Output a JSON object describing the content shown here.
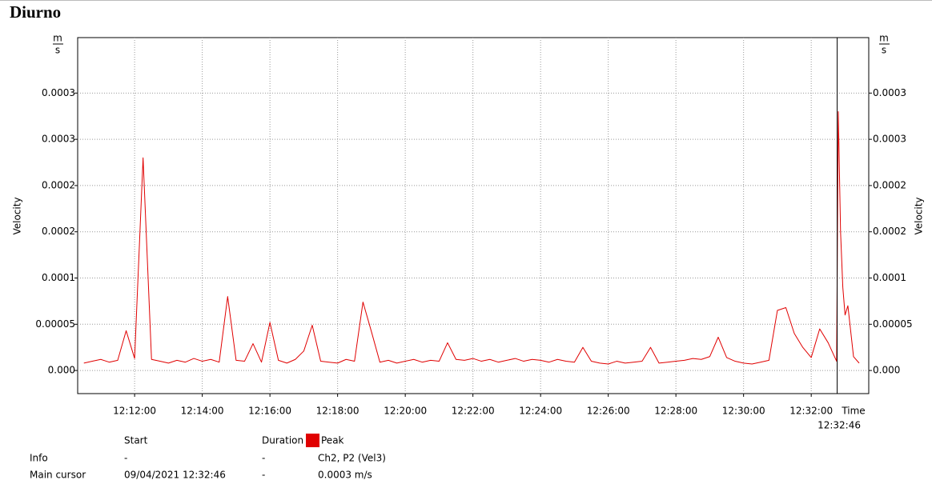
{
  "chart_data": {
    "type": "line",
    "title": "Diurno",
    "y_label": "Velocity",
    "x_label": "Time",
    "y_unit": {
      "num": "m",
      "den": "s"
    },
    "x": [
      "12:10:30",
      "12:10:45",
      "12:11:00",
      "12:11:15",
      "12:11:30",
      "12:11:45",
      "12:12:00",
      "12:12:15",
      "12:12:30",
      "12:12:45",
      "12:13:00",
      "12:13:15",
      "12:13:30",
      "12:13:45",
      "12:14:00",
      "12:14:15",
      "12:14:30",
      "12:14:45",
      "12:15:00",
      "12:15:15",
      "12:15:30",
      "12:15:45",
      "12:16:00",
      "12:16:15",
      "12:16:30",
      "12:16:45",
      "12:17:00",
      "12:17:15",
      "12:17:30",
      "12:17:45",
      "12:18:00",
      "12:18:15",
      "12:18:30",
      "12:18:45",
      "12:19:00",
      "12:19:15",
      "12:19:30",
      "12:19:45",
      "12:20:00",
      "12:20:15",
      "12:20:30",
      "12:20:45",
      "12:21:00",
      "12:21:15",
      "12:21:30",
      "12:21:45",
      "12:22:00",
      "12:22:15",
      "12:22:30",
      "12:22:45",
      "12:23:00",
      "12:23:15",
      "12:23:30",
      "12:23:45",
      "12:24:00",
      "12:24:15",
      "12:24:30",
      "12:24:45",
      "12:25:00",
      "12:25:15",
      "12:25:30",
      "12:25:45",
      "12:26:00",
      "12:26:15",
      "12:26:30",
      "12:26:45",
      "12:27:00",
      "12:27:15",
      "12:27:30",
      "12:27:45",
      "12:28:00",
      "12:28:15",
      "12:28:30",
      "12:28:45",
      "12:29:00",
      "12:29:15",
      "12:29:30",
      "12:29:45",
      "12:30:00",
      "12:30:15",
      "12:30:30",
      "12:30:45",
      "12:31:00",
      "12:31:15",
      "12:31:30",
      "12:31:45",
      "12:32:00",
      "12:32:15",
      "12:32:30",
      "12:32:45",
      "12:32:48",
      "12:32:52",
      "12:32:56",
      "12:33:00",
      "12:33:05",
      "12:33:15",
      "12:33:25"
    ],
    "series": [
      {
        "name": "Peak",
        "color": "#e00000",
        "values": [
          8e-06,
          1e-05,
          1.2e-05,
          9e-06,
          1.1e-05,
          4.3e-05,
          1.3e-05,
          0.00023,
          1.2e-05,
          1e-05,
          8e-06,
          1.1e-05,
          9e-06,
          1.3e-05,
          1e-05,
          1.2e-05,
          9e-06,
          8e-05,
          1.1e-05,
          1e-05,
          2.9e-05,
          9e-06,
          5.2e-05,
          1.1e-05,
          8e-06,
          1.2e-05,
          2.1e-05,
          4.9e-05,
          1e-05,
          9e-06,
          8e-06,
          1.2e-05,
          1e-05,
          7.4e-05,
          4.2e-05,
          9e-06,
          1.1e-05,
          8e-06,
          1e-05,
          1.2e-05,
          9e-06,
          1.1e-05,
          1e-05,
          3e-05,
          1.2e-05,
          1.1e-05,
          1.3e-05,
          1e-05,
          1.2e-05,
          9e-06,
          1.1e-05,
          1.3e-05,
          1e-05,
          1.2e-05,
          1.1e-05,
          9e-06,
          1.2e-05,
          1e-05,
          9e-06,
          2.5e-05,
          1e-05,
          8e-06,
          7e-06,
          1e-05,
          8e-06,
          9e-06,
          1e-05,
          2.5e-05,
          8e-06,
          9e-06,
          1e-05,
          1.1e-05,
          1.3e-05,
          1.2e-05,
          1.5e-05,
          3.6e-05,
          1.4e-05,
          1e-05,
          8e-06,
          7e-06,
          9e-06,
          1.1e-05,
          6.5e-05,
          6.8e-05,
          4e-05,
          2.5e-05,
          1.4e-05,
          4.5e-05,
          3e-05,
          1e-05,
          0.00028,
          0.00015,
          9e-05,
          6e-05,
          7e-05,
          1.5e-05,
          8e-06
        ]
      }
    ],
    "xlim": [
      "12:10:19",
      "12:33:42"
    ],
    "xticks": [
      "12:12:00",
      "12:14:00",
      "12:16:00",
      "12:18:00",
      "12:20:00",
      "12:22:00",
      "12:24:00",
      "12:26:00",
      "12:28:00",
      "12:30:00",
      "12:32:00"
    ],
    "ylim": [
      -2.5e-05,
      0.00036
    ],
    "yticks": [
      {
        "value": 0,
        "label": "0.000"
      },
      5e-05,
      0.0001,
      {
        "value": 0.00015,
        "label": "0.0002"
      },
      0.0002,
      {
        "value": 0.00025,
        "label": "0.0003"
      },
      0.0003
    ],
    "grid": true,
    "cursor": "12:32:46"
  },
  "info": {
    "columns": [
      "Start",
      "Duration"
    ],
    "rows": [
      [
        "Info",
        "-",
        "-",
        "Ch2, P2 (Vel3)"
      ],
      [
        "Main cursor",
        "09/04/2021 12:32:46",
        "-",
        "0.0003 m/s"
      ]
    ]
  }
}
